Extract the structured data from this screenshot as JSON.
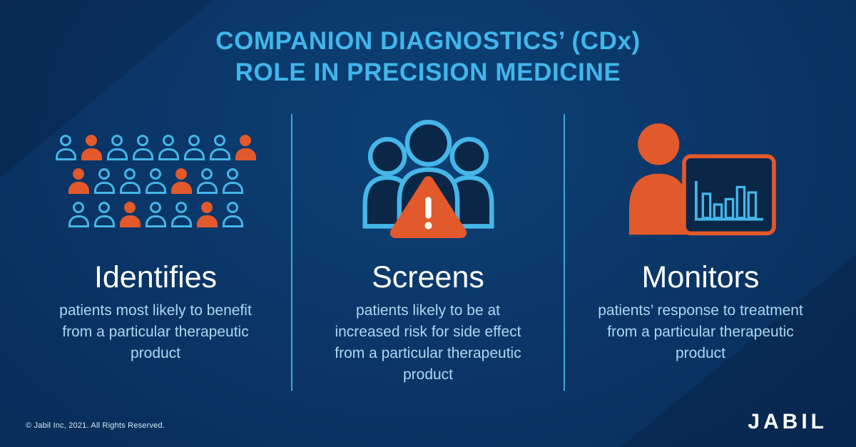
{
  "title": {
    "line1": "COMPANION DIAGNOSTICS’ (CDx)",
    "line2": "ROLE IN PRECISION MEDICINE"
  },
  "columns": [
    {
      "id": "identifies",
      "icon": "crowd-icon",
      "heading": "Identifies",
      "description": "patients most likely to benefit from a particular therapeutic product"
    },
    {
      "id": "screens",
      "icon": "warning-group-icon",
      "heading": "Screens",
      "description": "patients likely to be at increased risk for side effect from a particular therapeutic product"
    },
    {
      "id": "monitors",
      "icon": "monitor-person-icon",
      "heading": "Monitors",
      "description": "patients’ response to treatment from a particular therapeutic product"
    }
  ],
  "crowd": {
    "rows": [
      [
        "blue",
        "orange",
        "blue",
        "blue",
        "blue",
        "blue",
        "blue",
        "orange"
      ],
      [
        "orange",
        "blue",
        "blue",
        "blue",
        "orange",
        "blue",
        "blue"
      ],
      [
        "blue",
        "blue",
        "orange",
        "blue",
        "blue",
        "orange",
        "blue"
      ]
    ]
  },
  "monitor_chart_bars": [
    36,
    20,
    28,
    46,
    38
  ],
  "footer": {
    "copyright": "© Jabil Inc, 2021. All Rights Reserved.",
    "logo": "JABIL"
  },
  "colors": {
    "background": "#0a3566",
    "accent_blue": "#45b6e8",
    "title_blue": "#41b6e9",
    "orange": "#e2592b",
    "heading_white": "#ffffff",
    "body_text": "#a9d9f2",
    "dark_silhouette": "#0a2748"
  }
}
